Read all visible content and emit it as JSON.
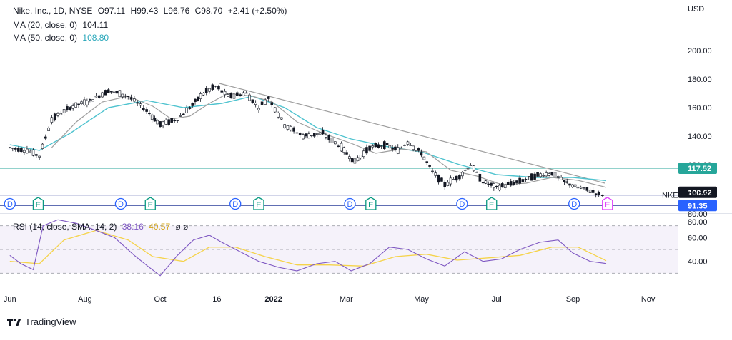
{
  "header": {
    "symbol": "Nike, Inc., 1D, NYSE",
    "open": "O97.11",
    "high": "H99.43",
    "low": "L96.76",
    "close": "C98.70",
    "change": "+2.41 (+2.50%)",
    "ma20_label": "MA (20, close, 0)",
    "ma20_value": "104.11",
    "ma50_label": "MA (50, close, 0)",
    "ma50_value": "108.80",
    "rsi_label": "RSI (14, close, SMA, 14, 2)",
    "rsi_value": "38.16",
    "rsi_ma_value": "40.57",
    "rsi_extra": "ø ø"
  },
  "colors": {
    "up": "#131722",
    "ma20": "#9e9e9e",
    "ma50": "#4fc3cf",
    "rsi": "#7e57c2",
    "rsi_ma": "#f5d34a",
    "support": "#4a59a8",
    "resistance_green": "#26a69a",
    "dividend": "#2962ff",
    "earnings": "#089981",
    "earnings_future": "#e040fb"
  },
  "footer": {
    "brand": "TradingView"
  },
  "chart_data": [
    {
      "type": "candlestick",
      "title": "Nike, Inc., 1D, NYSE",
      "ylabel": "USD",
      "ylim": [
        80,
        220
      ],
      "y_ticks": [
        "80.00",
        "100.00",
        "120.00",
        "140.00",
        "160.00",
        "180.00",
        "200.00"
      ],
      "x_ticks": [
        "Jun",
        "Aug",
        "Oct",
        "16",
        "2022",
        "Mar",
        "May",
        "Jul",
        "Sep",
        "Nov"
      ],
      "price_labels": [
        {
          "text": "117.52",
          "value": 117.52,
          "color": "#26a69a"
        },
        {
          "text": "100.62",
          "value": 100.62,
          "color": "#131722"
        },
        {
          "text": "98.70",
          "value": 98.7,
          "color": "none",
          "tag": "NKE"
        },
        {
          "text": "91.35",
          "value": 91.35,
          "color": "#2962ff"
        }
      ],
      "horizontal_lines": [
        {
          "value": 117.52,
          "color": "#26a69a"
        },
        {
          "value": 98.7,
          "color": "#4a59a8"
        },
        {
          "value": 91.35,
          "color": "#4a59a8"
        }
      ],
      "trendline": {
        "from": {
          "x": "2021-11-18",
          "y": 177
        },
        "to": {
          "x": "2022-09-27",
          "y": 107
        }
      },
      "series": [
        {
          "name": "Price",
          "points": [
            [
              "2021-06-01",
              132
            ],
            [
              "2021-06-15",
              130
            ],
            [
              "2021-06-25",
              126
            ],
            [
              "2021-07-05",
              152
            ],
            [
              "2021-07-20",
              160
            ],
            [
              "2021-08-05",
              165
            ],
            [
              "2021-08-20",
              172
            ],
            [
              "2021-09-05",
              168
            ],
            [
              "2021-09-20",
              158
            ],
            [
              "2021-10-01",
              148
            ],
            [
              "2021-10-15",
              152
            ],
            [
              "2021-10-25",
              160
            ],
            [
              "2021-11-05",
              170
            ],
            [
              "2021-11-15",
              175
            ],
            [
              "2021-11-25",
              168
            ],
            [
              "2021-12-10",
              170
            ],
            [
              "2021-12-20",
              160
            ],
            [
              "2021-12-28",
              167
            ],
            [
              "2022-01-10",
              148
            ],
            [
              "2022-01-25",
              140
            ],
            [
              "2022-02-10",
              142
            ],
            [
              "2022-02-25",
              132
            ],
            [
              "2022-03-08",
              122
            ],
            [
              "2022-03-20",
              132
            ],
            [
              "2022-04-01",
              134
            ],
            [
              "2022-04-12",
              130
            ],
            [
              "2022-04-20",
              136
            ],
            [
              "2022-05-01",
              128
            ],
            [
              "2022-05-10",
              115
            ],
            [
              "2022-05-20",
              106
            ],
            [
              "2022-06-01",
              112
            ],
            [
              "2022-06-10",
              120
            ],
            [
              "2022-06-20",
              108
            ],
            [
              "2022-07-01",
              104
            ],
            [
              "2022-07-15",
              107
            ],
            [
              "2022-08-01",
              112
            ],
            [
              "2022-08-15",
              114
            ],
            [
              "2022-08-25",
              108
            ],
            [
              "2022-09-05",
              104
            ],
            [
              "2022-09-15",
              102
            ],
            [
              "2022-09-22",
              99
            ],
            [
              "2022-09-28",
              98.7
            ]
          ]
        },
        {
          "name": "MA (20, close, 0)",
          "points": [
            [
              "2021-07-05",
              132
            ],
            [
              "2021-07-25",
              150
            ],
            [
              "2021-08-15",
              164
            ],
            [
              "2021-09-05",
              168
            ],
            [
              "2021-09-25",
              161
            ],
            [
              "2021-10-10",
              152
            ],
            [
              "2021-10-25",
              154
            ],
            [
              "2021-11-10",
              163
            ],
            [
              "2021-11-25",
              170
            ],
            [
              "2021-12-15",
              168
            ],
            [
              "2021-12-31",
              164
            ],
            [
              "2022-01-20",
              150
            ],
            [
              "2022-02-10",
              142
            ],
            [
              "2022-03-05",
              135
            ],
            [
              "2022-03-25",
              128
            ],
            [
              "2022-04-15",
              131
            ],
            [
              "2022-05-05",
              129
            ],
            [
              "2022-05-25",
              116
            ],
            [
              "2022-06-15",
              112
            ],
            [
              "2022-07-05",
              106
            ],
            [
              "2022-07-25",
              107
            ],
            [
              "2022-08-15",
              111
            ],
            [
              "2022-09-05",
              109
            ],
            [
              "2022-09-28",
              104.11
            ]
          ]
        },
        {
          "name": "MA (50, close, 0)",
          "points": [
            [
              "2021-06-01",
              134
            ],
            [
              "2021-06-25",
              130
            ],
            [
              "2021-07-20",
              142
            ],
            [
              "2021-08-20",
              160
            ],
            [
              "2021-09-20",
              165
            ],
            [
              "2021-10-20",
              160
            ],
            [
              "2021-11-20",
              163
            ],
            [
              "2021-12-15",
              168
            ],
            [
              "2022-01-10",
              160
            ],
            [
              "2022-02-05",
              146
            ],
            [
              "2022-03-05",
              138
            ],
            [
              "2022-04-01",
              133
            ],
            [
              "2022-05-01",
              129
            ],
            [
              "2022-06-01",
              120
            ],
            [
              "2022-07-01",
              113
            ],
            [
              "2022-08-01",
              111
            ],
            [
              "2022-09-01",
              111
            ],
            [
              "2022-09-28",
              108.8
            ]
          ]
        }
      ],
      "events": {
        "dividends": [
          "2021-06-01",
          "2021-08-30",
          "2021-12-01",
          "2022-03-04",
          "2022-06-03",
          "2022-09-02"
        ],
        "earnings": [
          "2021-06-24",
          "2021-09-23",
          "2021-12-20",
          "2022-03-21",
          "2022-06-27",
          "2022-09-29"
        ],
        "dividend_label": "D",
        "earnings_label": "E"
      }
    },
    {
      "type": "line",
      "title": "RSI (14, close, SMA, 14, 2)",
      "ylim": [
        20,
        80
      ],
      "y_ticks": [
        "40.00",
        "60.00",
        "80.00"
      ],
      "band": [
        30,
        70
      ],
      "series": [
        {
          "name": "RSI",
          "points": [
            [
              "2021-06-01",
              45
            ],
            [
              "2021-06-10",
              38
            ],
            [
              "2021-06-20",
              33
            ],
            [
              "2021-06-28",
              70
            ],
            [
              "2021-07-10",
              75
            ],
            [
              "2021-07-25",
              72
            ],
            [
              "2021-08-10",
              66
            ],
            [
              "2021-08-25",
              60
            ],
            [
              "2021-09-10",
              45
            ],
            [
              "2021-09-22",
              35
            ],
            [
              "2021-10-01",
              28
            ],
            [
              "2021-10-15",
              45
            ],
            [
              "2021-10-28",
              58
            ],
            [
              "2021-11-10",
              62
            ],
            [
              "2021-11-20",
              56
            ],
            [
              "2021-12-05",
              48
            ],
            [
              "2021-12-20",
              40
            ],
            [
              "2022-01-05",
              35
            ],
            [
              "2022-01-20",
              32
            ],
            [
              "2022-02-05",
              38
            ],
            [
              "2022-02-20",
              40
            ],
            [
              "2022-03-05",
              32
            ],
            [
              "2022-03-20",
              38
            ],
            [
              "2022-04-05",
              52
            ],
            [
              "2022-04-20",
              50
            ],
            [
              "2022-05-05",
              42
            ],
            [
              "2022-05-20",
              36
            ],
            [
              "2022-06-05",
              48
            ],
            [
              "2022-06-20",
              40
            ],
            [
              "2022-07-05",
              42
            ],
            [
              "2022-07-20",
              50
            ],
            [
              "2022-08-05",
              56
            ],
            [
              "2022-08-20",
              58
            ],
            [
              "2022-09-01",
              47
            ],
            [
              "2022-09-15",
              40
            ],
            [
              "2022-09-28",
              38.16
            ]
          ]
        },
        {
          "name": "RSI-based MA",
          "points": [
            [
              "2021-06-01",
              40
            ],
            [
              "2021-06-25",
              38
            ],
            [
              "2021-07-15",
              58
            ],
            [
              "2021-08-10",
              66
            ],
            [
              "2021-09-05",
              58
            ],
            [
              "2021-09-25",
              44
            ],
            [
              "2021-10-20",
              40
            ],
            [
              "2021-11-10",
              52
            ],
            [
              "2021-12-01",
              52
            ],
            [
              "2021-12-25",
              44
            ],
            [
              "2022-01-20",
              37
            ],
            [
              "2022-02-15",
              37
            ],
            [
              "2022-03-15",
              36
            ],
            [
              "2022-04-10",
              44
            ],
            [
              "2022-05-05",
              46
            ],
            [
              "2022-05-30",
              41
            ],
            [
              "2022-06-25",
              43
            ],
            [
              "2022-07-20",
              45
            ],
            [
              "2022-08-15",
              52
            ],
            [
              "2022-09-05",
              52
            ],
            [
              "2022-09-28",
              40.57
            ]
          ]
        }
      ]
    }
  ]
}
